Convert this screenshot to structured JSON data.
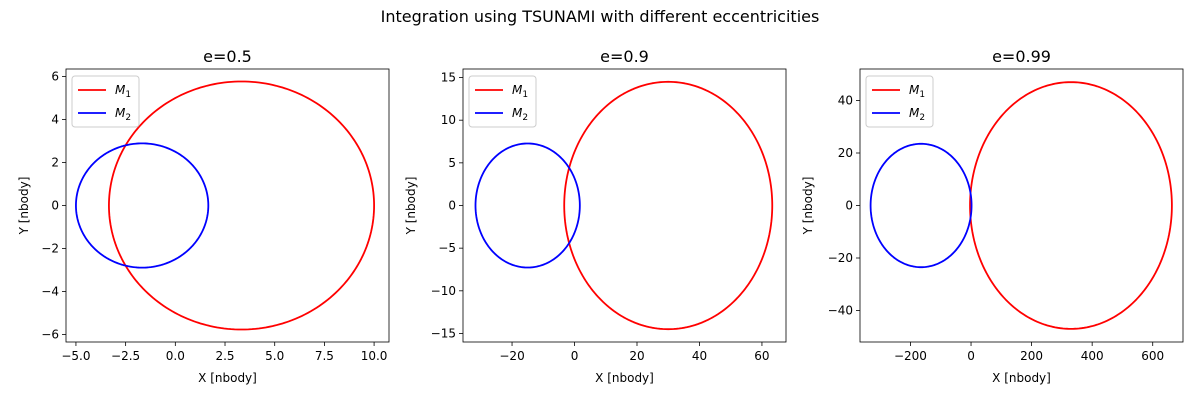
{
  "figure": {
    "suptitle": "Integration using TSUNAMI with different eccentricities"
  },
  "colors": {
    "M1": "#ff0000",
    "M2": "#0000ff",
    "axes": "#000000",
    "background": "#ffffff"
  },
  "chart_data": [
    {
      "type": "line",
      "title": "e=0.5",
      "xlabel": "X [nbody]",
      "ylabel": "Y [nbody]",
      "xlim": [
        -5.5,
        10.75
      ],
      "ylim": [
        -6.35,
        6.35
      ],
      "xticks": [
        -5.0,
        -2.5,
        0.0,
        2.5,
        5.0,
        7.5,
        10.0
      ],
      "xtick_labels": [
        "−5.0",
        "−2.5",
        "0.0",
        "2.5",
        "5.0",
        "7.5",
        "10.0"
      ],
      "yticks": [
        -6,
        -4,
        -2,
        0,
        2,
        4,
        6
      ],
      "ytick_labels": [
        "−6",
        "−4",
        "−2",
        "0",
        "2",
        "4",
        "6"
      ],
      "legend_position": "top-left",
      "series": [
        {
          "name": "M",
          "sub": "1",
          "color": "#ff0000",
          "orbit": {
            "cx": 3.33,
            "cy": 0,
            "a": 6.67,
            "b": 5.77
          }
        },
        {
          "name": "M",
          "sub": "2",
          "color": "#0000ff",
          "orbit": {
            "cx": -1.67,
            "cy": 0,
            "a": 3.33,
            "b": 2.89
          }
        }
      ]
    },
    {
      "type": "line",
      "title": "e=0.9",
      "xlabel": "X [nbody]",
      "ylabel": "Y [nbody]",
      "xlim": [
        -35.7,
        67.7
      ],
      "ylim": [
        -16.0,
        16.0
      ],
      "xticks": [
        -20,
        0,
        20,
        40,
        60
      ],
      "xtick_labels": [
        "−20",
        "0",
        "20",
        "40",
        "60"
      ],
      "yticks": [
        -15,
        -10,
        -5,
        0,
        5,
        10,
        15
      ],
      "ytick_labels": [
        "−15",
        "−10",
        "−5",
        "0",
        "5",
        "10",
        "15"
      ],
      "legend_position": "top-left",
      "series": [
        {
          "name": "M",
          "sub": "1",
          "color": "#ff0000",
          "orbit": {
            "cx": 30.0,
            "cy": 0,
            "a": 33.3,
            "b": 14.5
          }
        },
        {
          "name": "M",
          "sub": "2",
          "color": "#0000ff",
          "orbit": {
            "cx": -15.0,
            "cy": 0,
            "a": 16.7,
            "b": 7.27
          }
        }
      ]
    },
    {
      "type": "line",
      "title": "e=0.99",
      "xlabel": "X [nbody]",
      "ylabel": "Y [nbody]",
      "xlim": [
        -366.7,
        700.0
      ],
      "ylim": [
        -52.0,
        52.0
      ],
      "xticks": [
        -200,
        0,
        200,
        400,
        600
      ],
      "xtick_labels": [
        "−200",
        "0",
        "200",
        "400",
        "600"
      ],
      "yticks": [
        -40,
        -20,
        0,
        20,
        40
      ],
      "ytick_labels": [
        "−40",
        "−20",
        "0",
        "20",
        "40"
      ],
      "legend_position": "top-left",
      "series": [
        {
          "name": "M",
          "sub": "1",
          "color": "#ff0000",
          "orbit": {
            "cx": 330.0,
            "cy": 0,
            "a": 333.3,
            "b": 47.0
          }
        },
        {
          "name": "M",
          "sub": "2",
          "color": "#0000ff",
          "orbit": {
            "cx": -165.0,
            "cy": 0,
            "a": 166.7,
            "b": 23.5
          }
        }
      ]
    }
  ]
}
